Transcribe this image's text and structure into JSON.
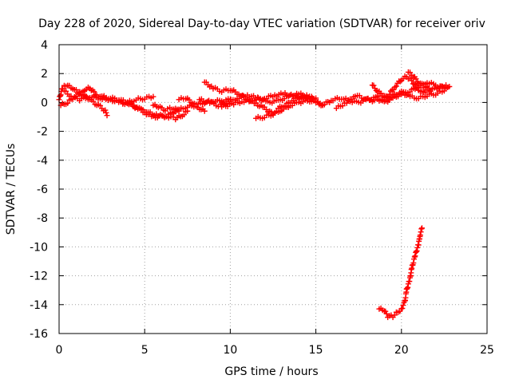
{
  "chart_data": {
    "type": "scatter",
    "title": "Day 228 of 2020, Sidereal Day-to-day VTEC variation (SDTVAR) for receiver oriv",
    "xlabel": "GPS time / hours",
    "ylabel": "SDTVAR / TECUs",
    "xlim": [
      0,
      25
    ],
    "ylim": [
      -16,
      4
    ],
    "xticks": [
      "0",
      "5",
      "10",
      "15",
      "20",
      "25"
    ],
    "yticks": [
      "4",
      "2",
      "0",
      "-2",
      "-4",
      "-6",
      "-8",
      "-10",
      "-12",
      "-14",
      "-16"
    ],
    "grid": true,
    "marker": "plus",
    "series": [
      {
        "name": "SDTVAR",
        "color": "#ff0000",
        "traces": [
          [
            [
              0.0,
              0.2
            ],
            [
              0.2,
              1.0
            ],
            [
              0.4,
              1.2
            ],
            [
              0.8,
              1.0
            ],
            [
              1.2,
              0.6
            ],
            [
              1.6,
              0.4
            ],
            [
              2.0,
              0.0
            ],
            [
              2.4,
              -0.3
            ],
            [
              2.7,
              -0.6
            ],
            [
              2.8,
              -0.9
            ]
          ],
          [
            [
              0.1,
              -0.2
            ],
            [
              0.5,
              0.0
            ],
            [
              1.0,
              0.5
            ],
            [
              1.5,
              0.9
            ],
            [
              1.8,
              1.0
            ],
            [
              2.2,
              0.5
            ],
            [
              2.6,
              0.3
            ],
            [
              3.0,
              0.2
            ],
            [
              3.5,
              0.1
            ],
            [
              4.0,
              0.0
            ],
            [
              4.5,
              0.2
            ],
            [
              5.0,
              0.3
            ],
            [
              5.5,
              0.4
            ]
          ],
          [
            [
              0.3,
              0.8
            ],
            [
              0.8,
              0.3
            ],
            [
              1.2,
              0.2
            ],
            [
              1.8,
              0.4
            ],
            [
              2.4,
              0.3
            ],
            [
              3.0,
              0.2
            ],
            [
              3.6,
              0.0
            ],
            [
              4.2,
              -0.2
            ],
            [
              4.8,
              -0.5
            ],
            [
              5.2,
              -0.7
            ],
            [
              5.8,
              -0.9
            ],
            [
              6.4,
              -1.0
            ],
            [
              6.8,
              -1.1
            ],
            [
              7.2,
              -0.9
            ],
            [
              7.5,
              -0.6
            ]
          ],
          [
            [
              2.5,
              0.4
            ],
            [
              3.0,
              0.3
            ],
            [
              3.5,
              0.2
            ],
            [
              4.0,
              0.0
            ],
            [
              4.5,
              -0.3
            ],
            [
              5.0,
              -0.7
            ],
            [
              5.5,
              -1.0
            ],
            [
              6.0,
              -1.0
            ],
            [
              6.5,
              -0.8
            ],
            [
              7.0,
              -0.5
            ],
            [
              7.5,
              -0.3
            ],
            [
              8.0,
              -0.2
            ],
            [
              8.5,
              0.0
            ],
            [
              9.0,
              0.1
            ],
            [
              9.5,
              0.1
            ],
            [
              10.0,
              0.2
            ]
          ],
          [
            [
              5.5,
              -0.2
            ],
            [
              5.8,
              -0.3
            ],
            [
              6.2,
              -0.5
            ],
            [
              6.6,
              -0.4
            ],
            [
              7.0,
              -0.6
            ]
          ],
          [
            [
              7.0,
              0.2
            ],
            [
              7.4,
              0.3
            ],
            [
              7.8,
              0.0
            ],
            [
              8.2,
              -0.4
            ],
            [
              8.5,
              -0.6
            ]
          ],
          [
            [
              8.5,
              1.4
            ],
            [
              9.0,
              1.0
            ],
            [
              9.5,
              0.8
            ],
            [
              10.0,
              0.9
            ],
            [
              10.5,
              0.6
            ],
            [
              11.0,
              0.2
            ],
            [
              11.5,
              -0.1
            ],
            [
              12.0,
              -0.4
            ],
            [
              12.5,
              -0.8
            ]
          ],
          [
            [
              8.2,
              0.2
            ],
            [
              8.8,
              0.0
            ],
            [
              9.3,
              -0.2
            ],
            [
              9.8,
              0.0
            ],
            [
              10.4,
              0.3
            ],
            [
              11.0,
              0.5
            ],
            [
              11.6,
              0.3
            ],
            [
              12.2,
              0.0
            ],
            [
              12.8,
              0.1
            ],
            [
              13.4,
              0.4
            ],
            [
              14.0,
              0.6
            ],
            [
              14.5,
              0.4
            ],
            [
              15.0,
              0.3
            ]
          ],
          [
            [
              9.5,
              -0.3
            ],
            [
              10.2,
              -0.1
            ],
            [
              10.8,
              0.1
            ],
            [
              11.4,
              0.2
            ],
            [
              12.0,
              0.3
            ],
            [
              12.6,
              0.5
            ],
            [
              13.2,
              0.6
            ],
            [
              13.8,
              0.4
            ],
            [
              14.4,
              0.2
            ],
            [
              15.0,
              0.0
            ],
            [
              15.4,
              -0.2
            ]
          ],
          [
            [
              11.5,
              -1.1
            ],
            [
              12.0,
              -1.0
            ],
            [
              12.5,
              -0.8
            ],
            [
              13.0,
              -0.5
            ],
            [
              13.5,
              -0.2
            ],
            [
              14.0,
              0.0
            ],
            [
              14.5,
              0.1
            ]
          ],
          [
            [
              12.8,
              -0.4
            ],
            [
              13.2,
              -0.2
            ],
            [
              13.7,
              0.2
            ],
            [
              14.2,
              0.5
            ],
            [
              14.6,
              0.4
            ],
            [
              15.0,
              0.1
            ]
          ],
          [
            [
              15.0,
              0.0
            ],
            [
              15.5,
              -0.1
            ],
            [
              16.0,
              0.2
            ],
            [
              16.5,
              0.3
            ],
            [
              17.0,
              0.1
            ],
            [
              17.5,
              0.0
            ],
            [
              18.0,
              0.2
            ],
            [
              18.5,
              0.3
            ],
            [
              19.0,
              0.0
            ],
            [
              19.5,
              0.3
            ],
            [
              20.0,
              0.6
            ],
            [
              20.5,
              0.8
            ],
            [
              21.0,
              1.1
            ],
            [
              21.5,
              1.4
            ],
            [
              22.0,
              1.2
            ],
            [
              22.5,
              1.0
            ],
            [
              22.8,
              1.1
            ]
          ],
          [
            [
              16.2,
              -0.4
            ],
            [
              16.8,
              0.0
            ],
            [
              17.3,
              0.5
            ],
            [
              17.8,
              0.3
            ],
            [
              18.3,
              0.1
            ],
            [
              18.8,
              0.6
            ],
            [
              19.2,
              0.3
            ],
            [
              19.6,
              0.5
            ],
            [
              20.0,
              0.7
            ],
            [
              20.5,
              0.4
            ],
            [
              21.0,
              0.3
            ],
            [
              21.5,
              0.5
            ],
            [
              22.0,
              0.6
            ],
            [
              22.5,
              0.8
            ]
          ],
          [
            [
              18.3,
              1.2
            ],
            [
              18.6,
              0.8
            ],
            [
              19.0,
              0.4
            ],
            [
              19.3,
              0.2
            ]
          ],
          [
            [
              18.9,
              0.2
            ],
            [
              19.3,
              0.6
            ],
            [
              19.7,
              1.2
            ],
            [
              20.0,
              1.6
            ],
            [
              20.3,
              1.8
            ],
            [
              20.6,
              1.5
            ],
            [
              20.9,
              1.0
            ],
            [
              21.2,
              0.7
            ],
            [
              21.5,
              0.8
            ],
            [
              21.8,
              0.9
            ],
            [
              22.2,
              1.0
            ],
            [
              22.6,
              1.2
            ]
          ],
          [
            [
              20.4,
              2.1
            ],
            [
              20.7,
              1.8
            ],
            [
              21.0,
              1.4
            ],
            [
              21.3,
              1.1
            ],
            [
              21.6,
              1.0
            ]
          ],
          [
            [
              18.7,
              -14.3
            ],
            [
              19.0,
              -14.4
            ],
            [
              19.2,
              -14.8
            ],
            [
              19.5,
              -14.8
            ],
            [
              19.8,
              -14.5
            ],
            [
              20.0,
              -14.3
            ],
            [
              20.2,
              -13.8
            ],
            [
              20.3,
              -13.0
            ],
            [
              20.5,
              -12.2
            ],
            [
              20.6,
              -11.5
            ],
            [
              20.8,
              -10.6
            ],
            [
              21.0,
              -9.8
            ],
            [
              21.1,
              -9.1
            ],
            [
              21.2,
              -8.7
            ]
          ]
        ]
      }
    ]
  }
}
